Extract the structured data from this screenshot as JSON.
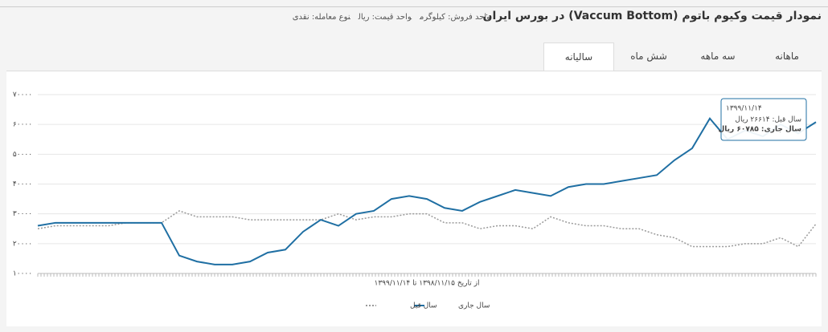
{
  "header": {
    "title": "نمودار قیمت وکیوم باتوم (Vaccum Bottom)  در بورس ایران",
    "info": [
      "واحد فروش: کیلوگرم",
      "واحد قیمت: ریال",
      "نوع معامله: نقدی"
    ]
  },
  "tabs": {
    "items": [
      "ماهانه",
      "سه ماهه",
      "شش ماه",
      "سالیانه"
    ],
    "active": 3
  },
  "chart_data": {
    "type": "line",
    "x_label": "از تاریخ ۱۳۹۸/۱۱/۱۵ تا ۱۳۹۹/۱۱/۱۴",
    "categories": [
      null,
      null,
      null,
      null,
      null,
      null,
      null,
      null,
      null,
      null,
      null,
      null,
      null,
      null,
      null,
      null,
      null,
      null,
      null,
      null,
      null,
      null,
      null,
      null,
      null,
      null,
      null,
      null,
      null,
      null,
      null,
      null,
      null,
      null,
      null,
      null,
      null,
      null,
      null,
      null,
      null,
      null,
      null,
      null,
      null
    ],
    "series": [
      {
        "name": "سال جاری",
        "color": "#1f6fa3",
        "dash": false,
        "values": [
          26000,
          27000,
          27000,
          27000,
          27000,
          27000,
          27000,
          27000,
          16000,
          14000,
          13000,
          13000,
          14000,
          17000,
          18000,
          24000,
          28000,
          26000,
          30000,
          31000,
          35000,
          36000,
          35000,
          32000,
          31000,
          34000,
          36000,
          38000,
          37000,
          36000,
          39000,
          40000,
          40000,
          41000,
          42000,
          43000,
          48000,
          52000,
          62000,
          55000,
          58000,
          56000,
          60000,
          57000,
          60785
        ]
      },
      {
        "name": "سال قبل",
        "color": "#9a9a9a",
        "dash": true,
        "values": [
          25000,
          26000,
          26000,
          26000,
          26000,
          27000,
          27000,
          27000,
          31000,
          29000,
          29000,
          29000,
          28000,
          28000,
          28000,
          28000,
          28000,
          30000,
          28000,
          29000,
          29000,
          30000,
          30000,
          27000,
          27000,
          25000,
          26000,
          26000,
          25000,
          29000,
          27000,
          26000,
          26000,
          25000,
          25000,
          23000,
          22000,
          19000,
          19000,
          19000,
          20000,
          20000,
          22000,
          19000,
          26614
        ]
      }
    ],
    "ylim": [
      10000,
      70000
    ],
    "yticks": [
      {
        "value": 10000,
        "label": "۱۰۰۰۰"
      },
      {
        "value": 20000,
        "label": "۲۰۰۰۰"
      },
      {
        "value": 30000,
        "label": "۳۰۰۰۰"
      },
      {
        "value": 40000,
        "label": "۴۰۰۰۰"
      },
      {
        "value": 50000,
        "label": "۵۰۰۰۰"
      },
      {
        "value": 60000,
        "label": "۶۰۰۰۰"
      },
      {
        "value": 70000,
        "label": "۷۰۰۰۰"
      }
    ],
    "grid": true,
    "tooltip": {
      "date": "۱۳۹۹/۱۱/۱۴",
      "lines": [
        "سال قبل: ۲۶۶۱۴ ریال",
        "سال جاری: ۶۰۷۸۵ ریال"
      ]
    }
  }
}
